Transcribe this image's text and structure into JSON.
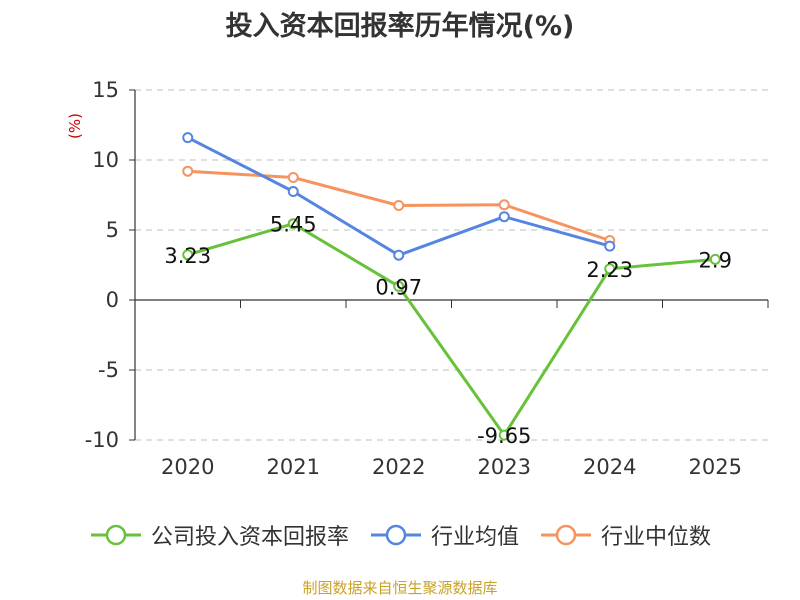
{
  "colors": {
    "company": "#67c23a",
    "industry_avg": "#5585e0",
    "industry_median": "#f6935e",
    "unit_label": "#cc0000",
    "source": "#c9a227"
  },
  "source": "制图数据来自恒生聚源数据库",
  "chart_data": {
    "type": "line",
    "title": "投入资本回报率历年情况(%)",
    "ylabel": "(%)",
    "xlabel": "",
    "categories": [
      "2020",
      "2021",
      "2022",
      "2023",
      "2024",
      "2025"
    ],
    "ylim": [
      -10,
      15
    ],
    "yticks": [
      15,
      10,
      5,
      0,
      -5,
      -10
    ],
    "grid": true,
    "legend_position": "bottom",
    "series": [
      {
        "name": "公司投入资本回报率",
        "color": "#67c23a",
        "values": [
          3.23,
          5.45,
          0.97,
          -9.65,
          2.23,
          2.9
        ],
        "labels": [
          "3.23",
          "5.45",
          "0.97",
          "-9.65",
          "2.23",
          "2.9"
        ]
      },
      {
        "name": "行业均值",
        "color": "#5585e0",
        "values": [
          11.6,
          7.75,
          3.2,
          5.95,
          3.85,
          null
        ]
      },
      {
        "name": "行业中位数",
        "color": "#f6935e",
        "values": [
          9.2,
          8.75,
          6.75,
          6.8,
          4.25,
          null
        ]
      }
    ]
  }
}
